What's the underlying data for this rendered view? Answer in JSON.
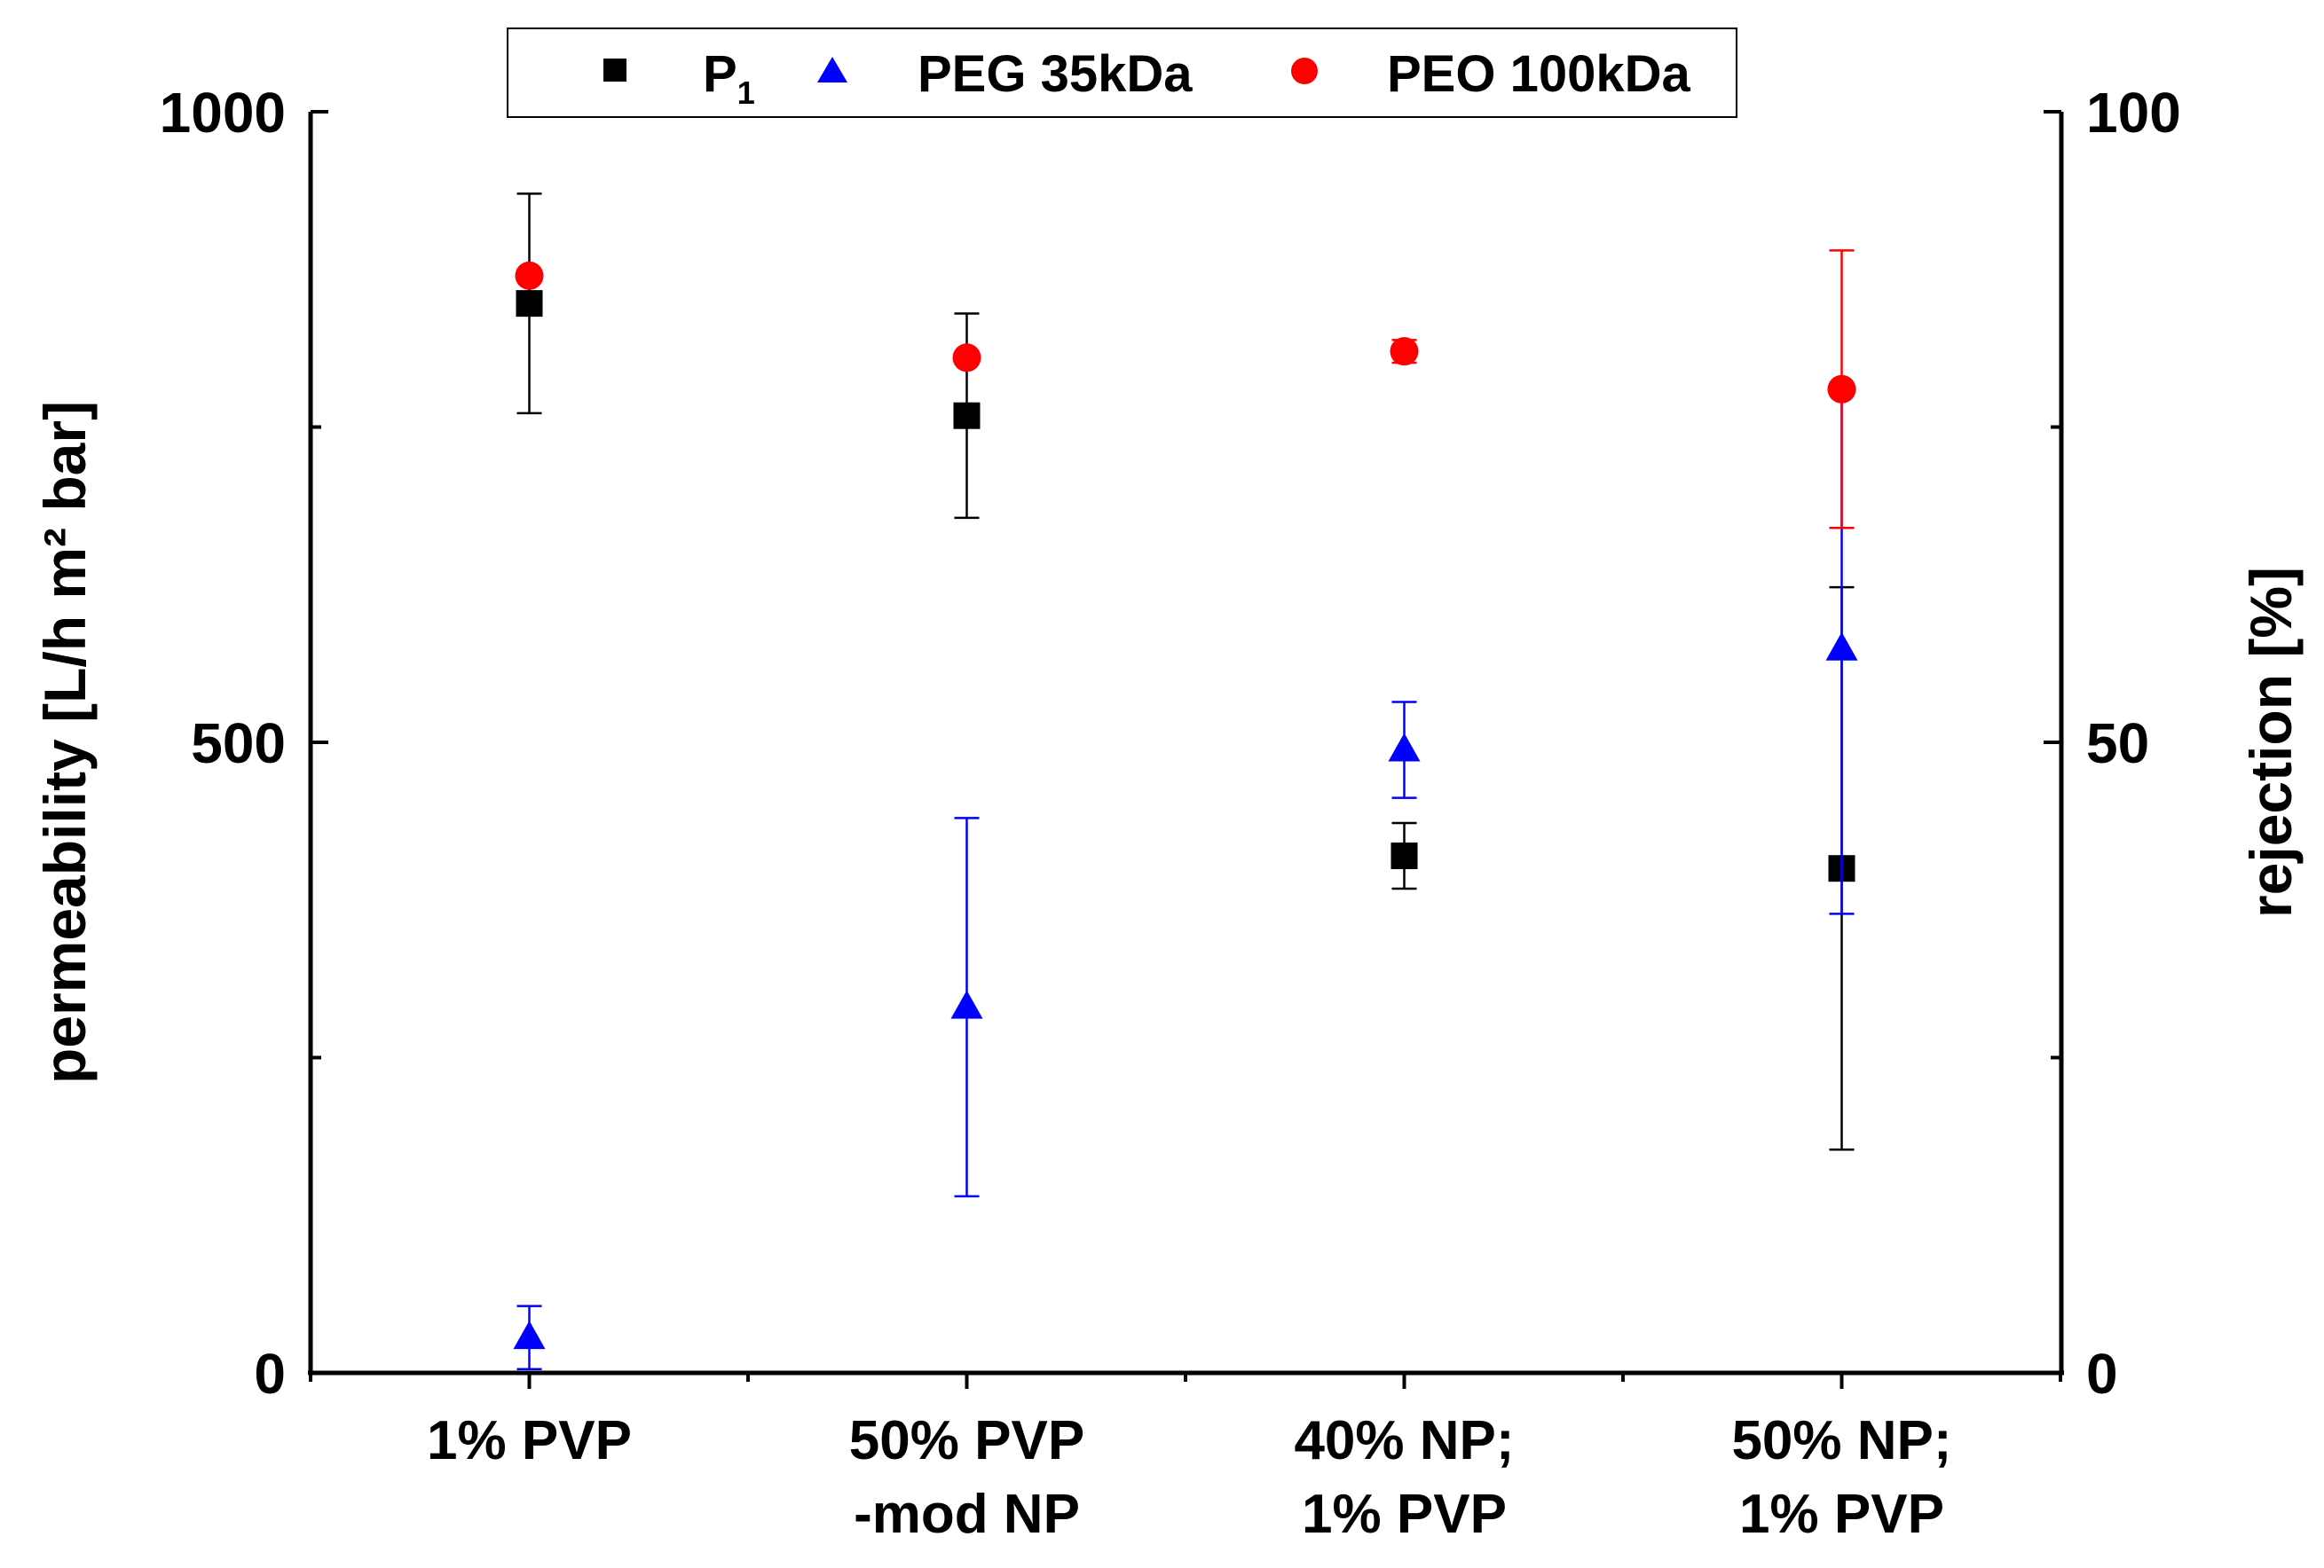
{
  "chart_data": {
    "type": "scatter",
    "categories": [
      "1% PVP",
      "50% PVP\n-mod NP",
      "40% NP;\n1% PVP",
      "50% NP;\n1% PVP"
    ],
    "left_axis": {
      "label": "permeability [L/h m² bar]",
      "ylim": [
        0,
        1000
      ],
      "ticks": [
        "0",
        "500",
        "1000"
      ]
    },
    "right_axis": {
      "label": "rejection [%]",
      "ylim": [
        0,
        100
      ],
      "ticks": [
        "0",
        "50",
        "100"
      ]
    },
    "legend": {
      "position": "top-center",
      "entries": [
        {
          "label": "P",
          "subscript": "1",
          "marker": "square",
          "color": "#000000"
        },
        {
          "label": "PEG 35kDa",
          "marker": "triangle",
          "color": "#0000ff"
        },
        {
          "label": "PEO 100kDa",
          "marker": "circle",
          "color": "#ff0000"
        }
      ]
    },
    "series": [
      {
        "name": "P1",
        "axis": "left",
        "marker": "square",
        "color": "#000000",
        "values": [
          848,
          759,
          410,
          400
        ],
        "errors": [
          87,
          81,
          26,
          223
        ]
      },
      {
        "name": "PEG 35kDa",
        "axis": "right",
        "marker": "triangle",
        "color": "#0000ff",
        "values": [
          2.8,
          29,
          49.4,
          57.4
        ],
        "errors": [
          2.5,
          15,
          3.8,
          21
        ]
      },
      {
        "name": "PEO 100kDa",
        "axis": "right",
        "marker": "circle",
        "color": "#ff0000",
        "values": [
          87,
          80.5,
          81,
          78
        ],
        "errors": [
          0,
          0,
          0.9,
          11
        ]
      }
    ]
  }
}
